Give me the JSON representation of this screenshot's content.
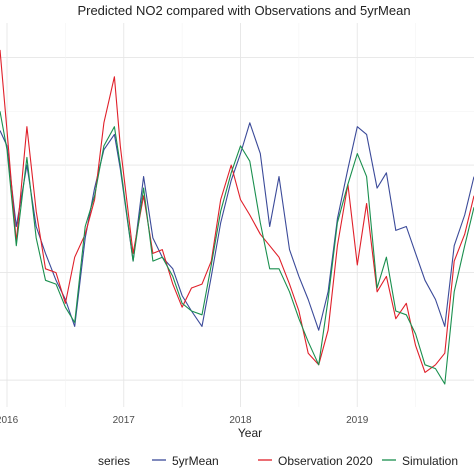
{
  "chart_data": {
    "type": "line",
    "title": "Predicted NO2 compared with Observations and 5yrMean",
    "xlabel": "Year",
    "ylabel": "",
    "x_tick_labels": [
      "2016",
      "2017",
      "2018",
      "2019"
    ],
    "x_tick_values": [
      2016.0,
      2017.0,
      2018.0,
      2019.0
    ],
    "xlim": [
      2015.94,
      2020.0
    ],
    "ylim": [
      0,
      100
    ],
    "grid": true,
    "legend": {
      "title": "series",
      "placement": "bottom"
    },
    "colors": {
      "5yrMean": "#3b4a99",
      "Observation 2020": "#e0202a",
      "Simulation": "#1a8f4e"
    },
    "series": [
      {
        "name": "5yrMean",
        "points": [
          [
            2015.94,
            72
          ],
          [
            2016.0,
            68
          ],
          [
            2016.08,
            47
          ],
          [
            2016.17,
            63
          ],
          [
            2016.25,
            47
          ],
          [
            2016.33,
            40
          ],
          [
            2016.42,
            33
          ],
          [
            2016.5,
            28
          ],
          [
            2016.58,
            21
          ],
          [
            2016.67,
            44
          ],
          [
            2016.75,
            57
          ],
          [
            2016.83,
            67
          ],
          [
            2016.92,
            71
          ],
          [
            2016.97,
            62
          ],
          [
            2017.08,
            38
          ],
          [
            2017.17,
            60
          ],
          [
            2017.25,
            44
          ],
          [
            2017.33,
            39
          ],
          [
            2017.42,
            36
          ],
          [
            2017.5,
            29
          ],
          [
            2017.58,
            25
          ],
          [
            2017.67,
            21
          ],
          [
            2017.75,
            34
          ],
          [
            2017.83,
            48
          ],
          [
            2017.92,
            59
          ],
          [
            2018.0,
            66
          ],
          [
            2018.08,
            74
          ],
          [
            2018.17,
            66
          ],
          [
            2018.25,
            47
          ],
          [
            2018.33,
            60
          ],
          [
            2018.42,
            41
          ],
          [
            2018.5,
            34
          ],
          [
            2018.58,
            28
          ],
          [
            2018.67,
            20
          ],
          [
            2018.75,
            30
          ],
          [
            2018.83,
            49
          ],
          [
            2018.92,
            62
          ],
          [
            2019.0,
            73
          ],
          [
            2019.08,
            71
          ],
          [
            2019.17,
            57
          ],
          [
            2019.25,
            61
          ],
          [
            2019.33,
            46
          ],
          [
            2019.42,
            47
          ],
          [
            2019.5,
            40
          ],
          [
            2019.58,
            33
          ],
          [
            2019.67,
            28
          ],
          [
            2019.75,
            21
          ],
          [
            2019.83,
            42
          ],
          [
            2019.92,
            50
          ],
          [
            2020.0,
            60
          ]
        ]
      },
      {
        "name": "Observation 2020",
        "points": [
          [
            2015.94,
            93
          ],
          [
            2016.0,
            72
          ],
          [
            2016.08,
            43
          ],
          [
            2016.17,
            73
          ],
          [
            2016.25,
            51
          ],
          [
            2016.33,
            36
          ],
          [
            2016.42,
            35
          ],
          [
            2016.5,
            27
          ],
          [
            2016.58,
            39
          ],
          [
            2016.67,
            45
          ],
          [
            2016.75,
            54
          ],
          [
            2016.83,
            74
          ],
          [
            2016.92,
            86
          ],
          [
            2016.97,
            68
          ],
          [
            2017.08,
            40
          ],
          [
            2017.17,
            55
          ],
          [
            2017.25,
            40
          ],
          [
            2017.33,
            41
          ],
          [
            2017.42,
            32
          ],
          [
            2017.5,
            26
          ],
          [
            2017.58,
            31
          ],
          [
            2017.67,
            32
          ],
          [
            2017.75,
            38
          ],
          [
            2017.83,
            54
          ],
          [
            2017.92,
            63
          ],
          [
            2018.0,
            54
          ],
          [
            2018.08,
            50
          ],
          [
            2018.17,
            45
          ],
          [
            2018.25,
            42
          ],
          [
            2018.33,
            39
          ],
          [
            2018.42,
            32
          ],
          [
            2018.5,
            25
          ],
          [
            2018.58,
            14
          ],
          [
            2018.67,
            11
          ],
          [
            2018.75,
            20
          ],
          [
            2018.83,
            42
          ],
          [
            2018.92,
            58
          ],
          [
            2019.0,
            37
          ],
          [
            2019.08,
            53
          ],
          [
            2019.17,
            30
          ],
          [
            2019.25,
            34
          ],
          [
            2019.33,
            23
          ],
          [
            2019.42,
            27
          ],
          [
            2019.5,
            16
          ],
          [
            2019.58,
            9
          ],
          [
            2019.67,
            11
          ],
          [
            2019.75,
            14
          ],
          [
            2019.83,
            38
          ],
          [
            2019.92,
            45
          ],
          [
            2020.0,
            55
          ]
        ]
      },
      {
        "name": "Simulation",
        "points": [
          [
            2015.94,
            77
          ],
          [
            2016.0,
            67
          ],
          [
            2016.08,
            42
          ],
          [
            2016.17,
            65
          ],
          [
            2016.25,
            44
          ],
          [
            2016.33,
            33
          ],
          [
            2016.42,
            32
          ],
          [
            2016.5,
            26
          ],
          [
            2016.58,
            22
          ],
          [
            2016.67,
            47
          ],
          [
            2016.75,
            55
          ],
          [
            2016.83,
            68
          ],
          [
            2016.92,
            73
          ],
          [
            2016.97,
            63
          ],
          [
            2017.08,
            38
          ],
          [
            2017.17,
            57
          ],
          [
            2017.25,
            38
          ],
          [
            2017.33,
            39
          ],
          [
            2017.42,
            34
          ],
          [
            2017.5,
            27
          ],
          [
            2017.58,
            25
          ],
          [
            2017.67,
            24
          ],
          [
            2017.75,
            37
          ],
          [
            2017.83,
            51
          ],
          [
            2017.92,
            61
          ],
          [
            2018.0,
            68
          ],
          [
            2018.08,
            64
          ],
          [
            2018.17,
            48
          ],
          [
            2018.25,
            36
          ],
          [
            2018.33,
            36
          ],
          [
            2018.42,
            30
          ],
          [
            2018.5,
            23
          ],
          [
            2018.58,
            17
          ],
          [
            2018.67,
            11
          ],
          [
            2018.75,
            28
          ],
          [
            2018.83,
            48
          ],
          [
            2018.92,
            58
          ],
          [
            2019.0,
            66
          ],
          [
            2019.08,
            60
          ],
          [
            2019.17,
            31
          ],
          [
            2019.25,
            39
          ],
          [
            2019.33,
            25
          ],
          [
            2019.42,
            24
          ],
          [
            2019.5,
            19
          ],
          [
            2019.58,
            11
          ],
          [
            2019.67,
            10
          ],
          [
            2019.75,
            6
          ],
          [
            2019.83,
            30
          ],
          [
            2019.92,
            42
          ],
          [
            2020.0,
            52
          ]
        ]
      }
    ]
  }
}
